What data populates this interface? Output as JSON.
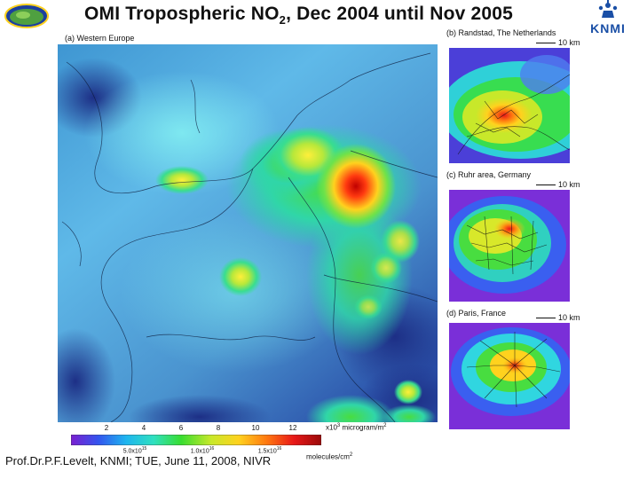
{
  "title": {
    "prefix": "OMI Tropospheric NO",
    "subscript": "2",
    "suffix": ", Dec 2004 until Nov 2005"
  },
  "panels": {
    "western_europe": "(a) Western Europe",
    "randstad": "(b) Randstad, The Netherlands",
    "ruhr": "(c) Ruhr area, Germany",
    "paris": "(d) Paris, France"
  },
  "scale_label": "10 km",
  "logo": {
    "text": "KNMI"
  },
  "colorbar": {
    "ticks_top": [
      "2",
      "4",
      "6",
      "8",
      "10",
      "12"
    ],
    "top_unit_prefix": "x10",
    "top_unit_exp": "3",
    "top_unit_suffix": " microgram/m",
    "top_unit_exp2": "2",
    "ticks_bottom": [
      "5.0x10",
      "1.0x10",
      "1.5x10"
    ],
    "ticks_bottom_exp": [
      "15",
      "16",
      "16"
    ],
    "bottom_unit": "molecules/cm",
    "bottom_unit_exp": "2",
    "colors": [
      "#7a1fd0",
      "#3355ee",
      "#1eb5ef",
      "#2fe0c0",
      "#38dd30",
      "#c8e82a",
      "#ffd21e",
      "#ff7a10",
      "#e81818",
      "#9a0a0a"
    ]
  },
  "footer": "Prof.Dr.P.F.Levelt, KNMI; TUE, June 11, 2008, NIVR"
}
